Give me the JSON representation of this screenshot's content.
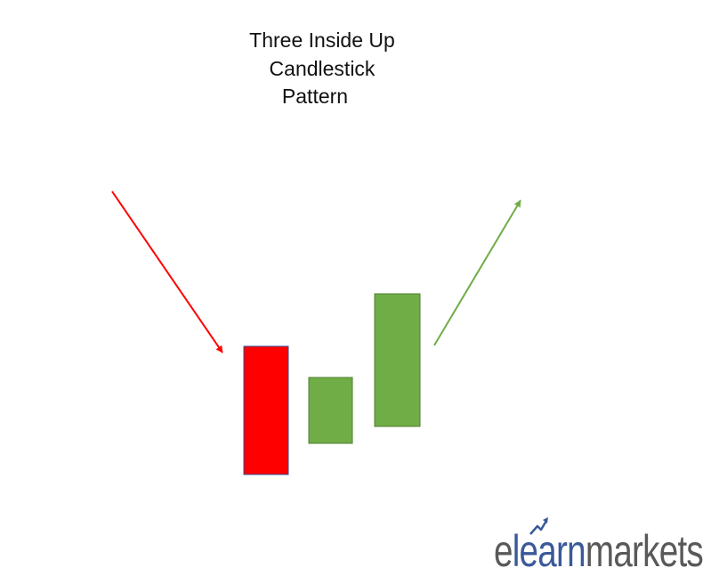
{
  "title_lines": [
    "Three Inside Up",
    "Candlestick",
    "Pattern"
  ],
  "colors": {
    "bearish": "#ff0000",
    "bullish": "#70ad47",
    "downtrend_arrow": "#ff0000",
    "uptrend_arrow": "#70ad47",
    "logo_grey": "#595959",
    "logo_blue": "#3b5998"
  },
  "candles": [
    {
      "name": "bearish-candle",
      "color": "#ff0000"
    },
    {
      "name": "inside-bullish-candle",
      "color": "#70ad47"
    },
    {
      "name": "confirmation-bullish-candle",
      "color": "#70ad47"
    }
  ],
  "logo": {
    "prefix": "e",
    "highlight": "learn",
    "suffix": "markets"
  }
}
